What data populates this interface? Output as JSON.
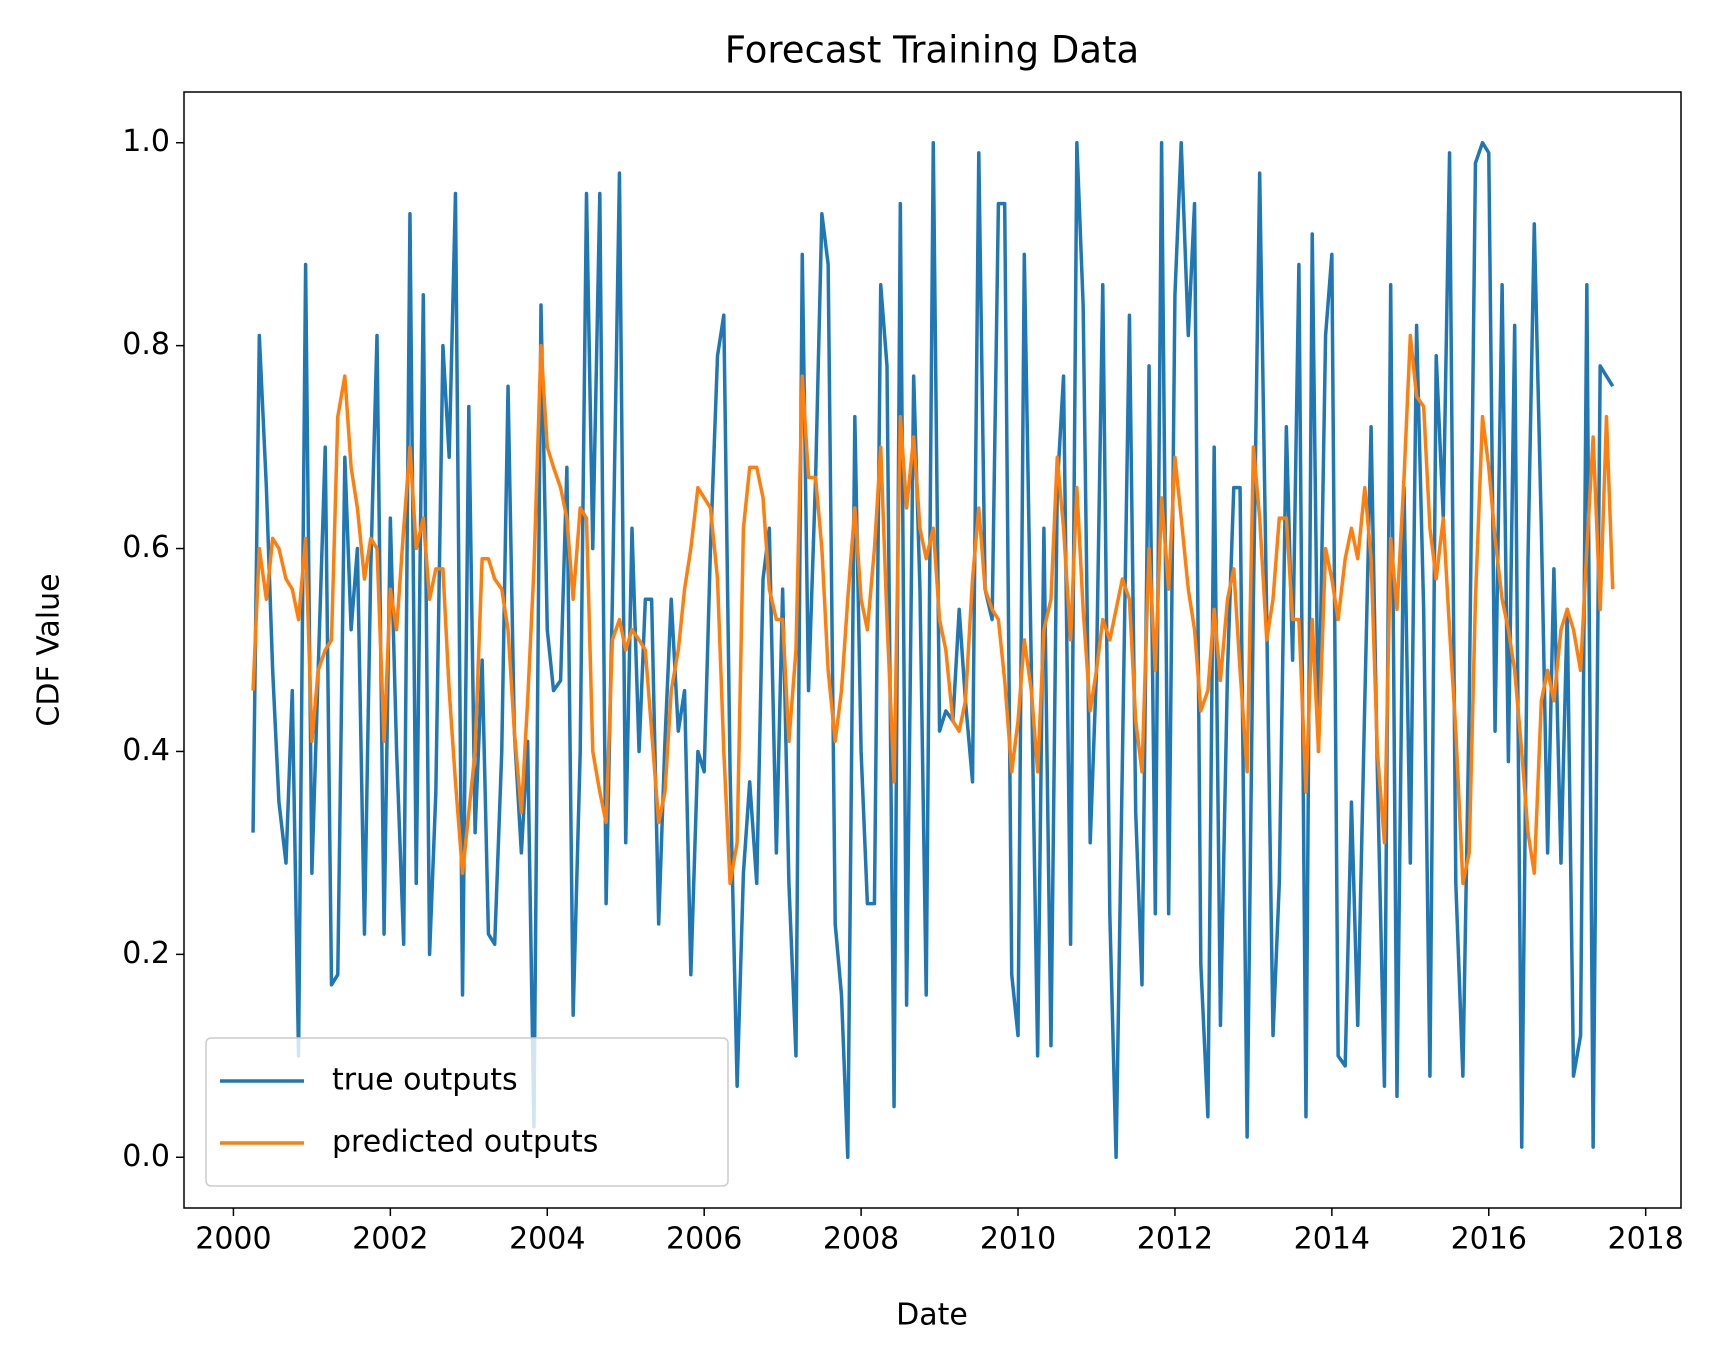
{
  "chart_data": {
    "type": "line",
    "title": "Forecast Training Data",
    "x_label": "Date",
    "y_label": "CDF Value",
    "x": [
      2000.25,
      2000.33,
      2000.42,
      2000.5,
      2000.58,
      2000.67,
      2000.75,
      2000.83,
      2000.92,
      2001,
      2001.08,
      2001.17,
      2001.25,
      2001.33,
      2001.42,
      2001.5,
      2001.58,
      2001.67,
      2001.75,
      2001.83,
      2001.92,
      2002,
      2002.08,
      2002.17,
      2002.25,
      2002.33,
      2002.42,
      2002.5,
      2002.58,
      2002.67,
      2002.75,
      2002.83,
      2002.92,
      2003,
      2003.08,
      2003.17,
      2003.25,
      2003.33,
      2003.42,
      2003.5,
      2003.58,
      2003.67,
      2003.75,
      2003.83,
      2003.92,
      2004,
      2004.08,
      2004.17,
      2004.25,
      2004.33,
      2004.42,
      2004.5,
      2004.58,
      2004.67,
      2004.75,
      2004.83,
      2004.92,
      2005,
      2005.08,
      2005.17,
      2005.25,
      2005.33,
      2005.42,
      2005.5,
      2005.58,
      2005.67,
      2005.75,
      2005.83,
      2005.92,
      2006,
      2006.08,
      2006.17,
      2006.25,
      2006.33,
      2006.42,
      2006.5,
      2006.58,
      2006.67,
      2006.75,
      2006.83,
      2006.92,
      2007,
      2007.08,
      2007.17,
      2007.25,
      2007.33,
      2007.42,
      2007.5,
      2007.58,
      2007.67,
      2007.75,
      2007.83,
      2007.92,
      2008,
      2008.08,
      2008.17,
      2008.25,
      2008.33,
      2008.42,
      2008.5,
      2008.58,
      2008.67,
      2008.75,
      2008.83,
      2008.92,
      2009,
      2009.08,
      2009.17,
      2009.25,
      2009.33,
      2009.42,
      2009.5,
      2009.58,
      2009.67,
      2009.75,
      2009.83,
      2009.92,
      2010,
      2010.08,
      2010.17,
      2010.25,
      2010.33,
      2010.42,
      2010.5,
      2010.58,
      2010.67,
      2010.75,
      2010.83,
      2010.92,
      2011,
      2011.08,
      2011.17,
      2011.25,
      2011.33,
      2011.42,
      2011.5,
      2011.58,
      2011.67,
      2011.75,
      2011.83,
      2011.92,
      2012,
      2012.08,
      2012.17,
      2012.25,
      2012.33,
      2012.42,
      2012.5,
      2012.58,
      2012.67,
      2012.75,
      2012.83,
      2012.92,
      2013,
      2013.08,
      2013.17,
      2013.25,
      2013.33,
      2013.42,
      2013.5,
      2013.58,
      2013.67,
      2013.75,
      2013.83,
      2013.92,
      2014,
      2014.08,
      2014.17,
      2014.25,
      2014.33,
      2014.42,
      2014.5,
      2014.58,
      2014.67,
      2014.75,
      2014.83,
      2014.92,
      2015,
      2015.08,
      2015.17,
      2015.25,
      2015.33,
      2015.42,
      2015.5,
      2015.58,
      2015.67,
      2015.75,
      2015.83,
      2015.92,
      2016,
      2016.08,
      2016.17,
      2016.25,
      2016.33,
      2016.42,
      2016.5,
      2016.58,
      2016.67,
      2016.75,
      2016.83,
      2016.92,
      2017,
      2017.08,
      2017.17,
      2017.25,
      2017.33,
      2017.42,
      2017.5,
      2017.58
    ],
    "series": [
      {
        "name": "true outputs",
        "color": "#1f77b4",
        "values": [
          0.32,
          0.81,
          0.66,
          0.48,
          0.35,
          0.29,
          0.46,
          0.1,
          0.88,
          0.28,
          0.48,
          0.7,
          0.17,
          0.18,
          0.69,
          0.52,
          0.6,
          0.22,
          0.58,
          0.81,
          0.22,
          0.63,
          0.4,
          0.21,
          0.93,
          0.27,
          0.85,
          0.2,
          0.36,
          0.8,
          0.69,
          0.95,
          0.16,
          0.74,
          0.32,
          0.49,
          0.22,
          0.21,
          0.4,
          0.76,
          0.42,
          0.3,
          0.41,
          0.03,
          0.84,
          0.52,
          0.46,
          0.47,
          0.68,
          0.14,
          0.4,
          0.95,
          0.6,
          0.95,
          0.25,
          0.55,
          0.97,
          0.31,
          0.62,
          0.4,
          0.55,
          0.55,
          0.23,
          0.41,
          0.55,
          0.42,
          0.46,
          0.18,
          0.4,
          0.38,
          0.6,
          0.79,
          0.83,
          0.38,
          0.07,
          0.28,
          0.37,
          0.27,
          0.57,
          0.62,
          0.3,
          0.56,
          0.27,
          0.1,
          0.89,
          0.46,
          0.67,
          0.93,
          0.88,
          0.23,
          0.16,
          0.0,
          0.73,
          0.4,
          0.25,
          0.25,
          0.86,
          0.78,
          0.05,
          0.94,
          0.15,
          0.77,
          0.56,
          0.16,
          1.0,
          0.42,
          0.44,
          0.43,
          0.54,
          0.45,
          0.37,
          0.99,
          0.56,
          0.53,
          0.94,
          0.94,
          0.18,
          0.12,
          0.89,
          0.48,
          0.1,
          0.62,
          0.11,
          0.66,
          0.77,
          0.21,
          1.0,
          0.84,
          0.31,
          0.48,
          0.86,
          0.24,
          0.0,
          0.39,
          0.83,
          0.34,
          0.17,
          0.78,
          0.24,
          1.0,
          0.24,
          0.85,
          1.0,
          0.81,
          0.94,
          0.19,
          0.04,
          0.7,
          0.13,
          0.48,
          0.66,
          0.66,
          0.02,
          0.55,
          0.97,
          0.53,
          0.12,
          0.27,
          0.72,
          0.49,
          0.88,
          0.04,
          0.91,
          0.4,
          0.81,
          0.89,
          0.1,
          0.09,
          0.35,
          0.13,
          0.45,
          0.72,
          0.38,
          0.07,
          0.86,
          0.06,
          0.66,
          0.29,
          0.82,
          0.54,
          0.08,
          0.79,
          0.63,
          0.99,
          0.27,
          0.08,
          0.44,
          0.98,
          1.0,
          0.99,
          0.42,
          0.86,
          0.39,
          0.82,
          0.01,
          0.59,
          0.92,
          0.62,
          0.3,
          0.58,
          0.29,
          0.54,
          0.08,
          0.12,
          0.86,
          0.01,
          0.78,
          0.77,
          0.76
        ]
      },
      {
        "name": "predicted outputs",
        "color": "#ff7f0e",
        "values": [
          0.46,
          0.6,
          0.55,
          0.61,
          0.6,
          0.57,
          0.56,
          0.53,
          0.61,
          0.41,
          0.48,
          0.5,
          0.51,
          0.73,
          0.77,
          0.68,
          0.64,
          0.57,
          0.61,
          0.6,
          0.41,
          0.56,
          0.52,
          0.62,
          0.7,
          0.6,
          0.63,
          0.55,
          0.58,
          0.58,
          0.46,
          0.37,
          0.28,
          0.34,
          0.4,
          0.59,
          0.59,
          0.57,
          0.56,
          0.52,
          0.42,
          0.34,
          0.45,
          0.58,
          0.8,
          0.7,
          0.68,
          0.66,
          0.63,
          0.55,
          0.64,
          0.63,
          0.4,
          0.36,
          0.33,
          0.51,
          0.53,
          0.5,
          0.52,
          0.51,
          0.5,
          0.42,
          0.33,
          0.36,
          0.46,
          0.5,
          0.56,
          0.6,
          0.66,
          0.65,
          0.64,
          0.57,
          0.4,
          0.27,
          0.31,
          0.62,
          0.68,
          0.68,
          0.65,
          0.56,
          0.53,
          0.53,
          0.41,
          0.5,
          0.77,
          0.67,
          0.67,
          0.6,
          0.48,
          0.41,
          0.46,
          0.55,
          0.64,
          0.55,
          0.52,
          0.6,
          0.7,
          0.53,
          0.37,
          0.73,
          0.64,
          0.71,
          0.62,
          0.59,
          0.62,
          0.53,
          0.5,
          0.43,
          0.42,
          0.45,
          0.57,
          0.64,
          0.56,
          0.54,
          0.53,
          0.47,
          0.38,
          0.43,
          0.51,
          0.46,
          0.38,
          0.52,
          0.55,
          0.69,
          0.62,
          0.51,
          0.66,
          0.54,
          0.44,
          0.48,
          0.53,
          0.51,
          0.54,
          0.57,
          0.55,
          0.43,
          0.38,
          0.6,
          0.48,
          0.65,
          0.56,
          0.69,
          0.63,
          0.56,
          0.52,
          0.44,
          0.46,
          0.54,
          0.47,
          0.55,
          0.58,
          0.48,
          0.38,
          0.7,
          0.63,
          0.51,
          0.55,
          0.63,
          0.63,
          0.53,
          0.53,
          0.36,
          0.53,
          0.4,
          0.6,
          0.57,
          0.53,
          0.59,
          0.62,
          0.59,
          0.66,
          0.59,
          0.4,
          0.31,
          0.61,
          0.54,
          0.67,
          0.81,
          0.75,
          0.74,
          0.62,
          0.57,
          0.63,
          0.52,
          0.42,
          0.27,
          0.3,
          0.55,
          0.73,
          0.68,
          0.61,
          0.55,
          0.52,
          0.48,
          0.4,
          0.32,
          0.28,
          0.45,
          0.48,
          0.45,
          0.52,
          0.54,
          0.52,
          0.48,
          0.6,
          0.71,
          0.54,
          0.73,
          0.56
        ]
      }
    ],
    "xlim": [
      1999.37,
      2018.45
    ],
    "xticks": [
      2000,
      2002,
      2004,
      2006,
      2008,
      2010,
      2012,
      2014,
      2016,
      2018
    ],
    "ylim": [
      -0.05,
      1.05
    ],
    "yticks": [
      {
        "value": 0,
        "label": "0.0"
      },
      0.2,
      0.4,
      0.6,
      0.8,
      {
        "value": 1,
        "label": "1.0"
      }
    ],
    "legend": "lower left"
  }
}
